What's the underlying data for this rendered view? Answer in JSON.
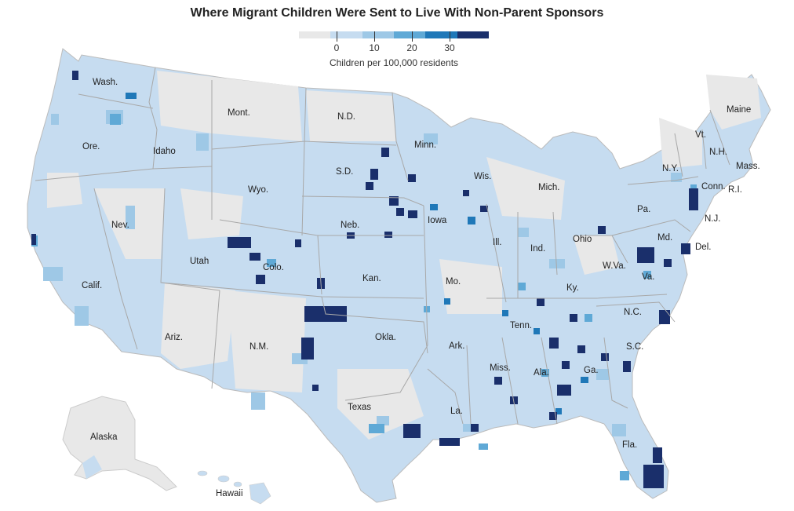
{
  "title": "Where Migrant Children Were Sent to Live With Non-Parent Sponsors",
  "legend": {
    "caption": "Children per 100,000 residents",
    "ticks": [
      "0",
      "10",
      "20",
      "30"
    ],
    "colors": [
      "#e8e8e8",
      "#c6dcf0",
      "#9ec8e6",
      "#5fa9d6",
      "#1f78b8",
      "#1a2f6b"
    ],
    "max_shown": 40
  },
  "colors": {
    "no_data": "#e8e8e8",
    "low": "#c6dcf0",
    "mid_low": "#9ec8e6",
    "mid": "#5fa9d6",
    "high": "#1f78b8",
    "very_high": "#1a2f6b",
    "borders": "#a8a8a8"
  },
  "state_labels": [
    "Wash.",
    "Mont.",
    "N.D.",
    "Minn.",
    "Maine",
    "Ore.",
    "Idaho",
    "Vt.",
    "N.H.",
    "Wis.",
    "S.D.",
    "Mass.",
    "N.Y.",
    "Mich.",
    "Wyo.",
    "Conn.",
    "R.I.",
    "Iowa",
    "Pa.",
    "N.J.",
    "Neb.",
    "Nev.",
    "Ohio",
    "Md.",
    "Ill.",
    "Ind.",
    "Utah",
    "Del.",
    "Colo.",
    "Calif.",
    "W.Va.",
    "Va.",
    "Kan.",
    "Mo.",
    "Ky.",
    "N.C.",
    "Tenn.",
    "Okla.",
    "Ariz.",
    "N.M.",
    "Ark.",
    "S.C.",
    "Miss.",
    "Ala.",
    "Ga.",
    "Texas",
    "La.",
    "Fla.",
    "Alaska",
    "Hawaii"
  ]
}
